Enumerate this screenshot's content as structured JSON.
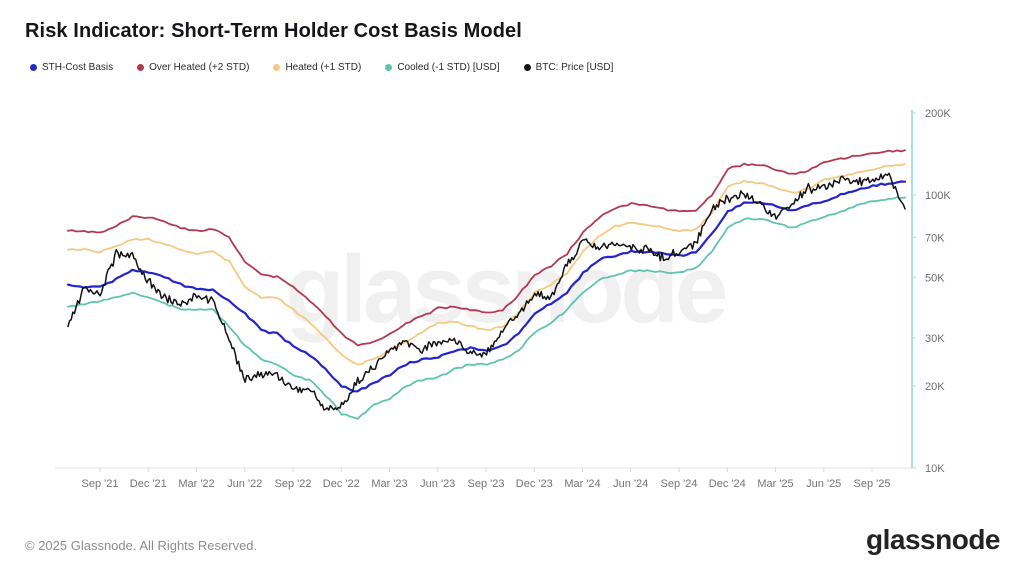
{
  "header": {
    "title": "Risk Indicator: Short-Term Holder Cost Basis Model"
  },
  "legend": [
    {
      "id": "sth-cost-basis",
      "label": "STH-Cost Basis",
      "color": "#2a2ac8"
    },
    {
      "id": "over-heated",
      "label": "Over Heated (+2 STD)",
      "color": "#b13a50"
    },
    {
      "id": "heated",
      "label": "Heated (+1 STD)",
      "color": "#f5c981"
    },
    {
      "id": "cooled",
      "label": "Cooled (-1 STD) [USD]",
      "color": "#5fc3b2"
    },
    {
      "id": "btc-price",
      "label": "BTC: Price [USD]",
      "color": "#121212"
    }
  ],
  "watermark": "glassnode",
  "footer": {
    "copyright": "© 2025 Glassnode. All Rights Reserved.",
    "brand": "glassnode"
  },
  "colors": {
    "y_axis_line": "#8bd7ca",
    "tick_text": "#757575",
    "axis_baseline": "#e7e7e7"
  },
  "chart_data": {
    "type": "line",
    "title": "Risk Indicator: Short-Term Holder Cost Basis Model",
    "yscale": "log",
    "unit": "USD",
    "ylim_k": [
      10,
      200
    ],
    "ytick_labels": [
      "200K",
      "100K",
      "70K",
      "50K",
      "30K",
      "20K",
      "10K"
    ],
    "ytick_values_k": [
      200,
      100,
      70,
      50,
      30,
      20,
      10
    ],
    "xtick_labels": [
      "Sep '21",
      "Dec '21",
      "Mar '22",
      "Jun '22",
      "Sep '22",
      "Dec '22",
      "Mar '23",
      "Jun '23",
      "Sep '23",
      "Dec '23",
      "Mar '24",
      "Jun '24",
      "Sep '24",
      "Dec '24",
      "Mar '25",
      "Jun '25",
      "Sep '25"
    ],
    "grid": false,
    "legend_position": "top-left",
    "months": [
      "Jul '21",
      "Aug '21",
      "Sep '21",
      "Oct '21",
      "Nov '21",
      "Dec '21",
      "Jan '22",
      "Feb '22",
      "Mar '22",
      "Apr '22",
      "May '22",
      "Jun '22",
      "Jul '22",
      "Aug '22",
      "Sep '22",
      "Oct '22",
      "Nov '22",
      "Dec '22",
      "Jan '23",
      "Feb '23",
      "Mar '23",
      "Apr '23",
      "May '23",
      "Jun '23",
      "Jul '23",
      "Aug '23",
      "Sep '23",
      "Oct '23",
      "Nov '23",
      "Dec '23",
      "Jan '24",
      "Feb '24",
      "Mar '24",
      "Apr '24",
      "May '24",
      "Jun '24",
      "Jul '24",
      "Aug '24",
      "Sep '24",
      "Oct '24",
      "Nov '24",
      "Dec '24",
      "Jan '25",
      "Feb '25",
      "Mar '25",
      "Apr '25",
      "May '25",
      "Jun '25",
      "Jul '25",
      "Aug '25",
      "Sep '25",
      "Oct '25",
      "Nov '25"
    ],
    "series": [
      {
        "name": "STH-Cost Basis",
        "color": "#2424cd",
        "width": 2.2,
        "values_k": [
          47,
          46,
          46,
          49,
          53,
          52,
          50,
          47,
          45,
          45,
          41,
          37,
          32,
          31,
          28,
          26,
          23,
          20,
          19,
          20.5,
          22,
          24,
          25,
          25.5,
          27,
          27.5,
          27,
          28,
          31,
          37,
          40,
          44,
          52,
          58,
          60,
          62,
          62,
          61,
          60,
          62,
          72,
          87,
          94,
          94,
          91,
          88,
          92,
          95,
          100,
          105,
          108,
          111,
          112
        ]
      },
      {
        "name": "Over Heated (+2 STD)",
        "color": "#b13a50",
        "width": 1.8,
        "values_k": [
          74,
          74,
          73,
          77,
          83,
          83,
          80,
          76,
          74,
          75,
          70,
          57,
          51,
          50,
          46,
          41,
          36,
          31,
          28,
          29,
          31,
          34,
          36,
          38.5,
          39,
          38,
          37,
          38,
          43,
          51,
          55,
          61,
          73,
          83,
          90,
          93,
          92,
          89,
          87,
          88,
          100,
          125,
          130,
          129,
          124,
          119,
          123,
          132,
          136,
          140,
          142,
          145,
          146
        ]
      },
      {
        "name": "Heated (+1 STD)",
        "color": "#f5c981",
        "width": 1.8,
        "values_k": [
          63,
          63,
          62,
          65,
          69,
          69,
          66,
          63,
          61,
          62,
          57,
          46,
          42,
          42,
          38,
          34,
          30,
          26,
          24,
          25,
          27,
          29,
          31.5,
          34,
          34.5,
          33,
          32,
          33,
          37,
          44,
          47,
          52,
          62,
          71,
          77,
          79,
          78,
          76,
          74,
          75,
          86,
          108,
          112,
          111,
          106,
          102,
          106,
          114,
          117,
          121,
          124,
          128,
          130
        ]
      },
      {
        "name": "Cooled (-1 STD) [USD]",
        "color": "#5fc3b2",
        "width": 1.8,
        "values_k": [
          39,
          40,
          41,
          42,
          44,
          42,
          40,
          38,
          38,
          38,
          33,
          28,
          25,
          24,
          22,
          21,
          18.5,
          15.8,
          15.2,
          17,
          18,
          20,
          21,
          21.5,
          23,
          24,
          24,
          25,
          27,
          31.5,
          34,
          38,
          44,
          49,
          51,
          53,
          53,
          52,
          52,
          54,
          62,
          76,
          82,
          82,
          79,
          76,
          80,
          83,
          87,
          92,
          95,
          97,
          98
        ]
      },
      {
        "name": "BTC: Price [USD]",
        "color": "#121212",
        "width": 1.5,
        "values_k": [
          33,
          45,
          44,
          61,
          60,
          48,
          42,
          40,
          43,
          41,
          30,
          21,
          22,
          22,
          19.5,
          19.5,
          16.5,
          16.8,
          21,
          23.5,
          27,
          29,
          27,
          29,
          29.5,
          26.5,
          26.5,
          32,
          37,
          43,
          42.5,
          55,
          68,
          64,
          67,
          64,
          63,
          59,
          62,
          67,
          90,
          97,
          102,
          92,
          84,
          92,
          106,
          105,
          116,
          112,
          113,
          118,
          89
        ]
      }
    ]
  }
}
